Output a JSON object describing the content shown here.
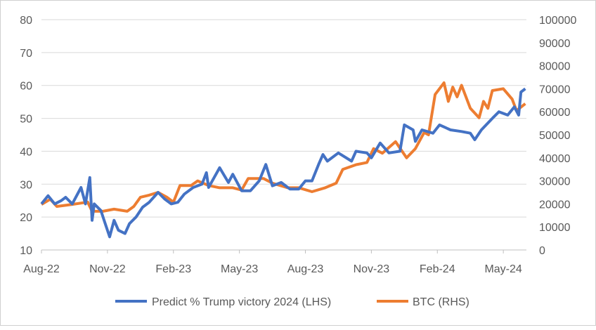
{
  "chart_data": {
    "type": "line",
    "title": "",
    "x_unit": "months since Aug-2022",
    "x_ticks": [
      {
        "m": 0,
        "label": "Aug-22"
      },
      {
        "m": 3,
        "label": "Nov-22"
      },
      {
        "m": 6,
        "label": "Feb-23"
      },
      {
        "m": 9,
        "label": "May-23"
      },
      {
        "m": 12,
        "label": "Aug-23"
      },
      {
        "m": 15,
        "label": "Nov-23"
      },
      {
        "m": 18,
        "label": "Feb-24"
      },
      {
        "m": 21,
        "label": "May-24"
      }
    ],
    "xlim": [
      0,
      22.05
    ],
    "y_left": {
      "ylim": [
        10,
        80
      ],
      "ticks": [
        "10",
        "20",
        "30",
        "40",
        "50",
        "60",
        "70",
        "80"
      ]
    },
    "y_right": {
      "ylim": [
        0,
        100000
      ],
      "ticks": [
        "0",
        "10000",
        "20000",
        "30000",
        "40000",
        "50000",
        "60000",
        "70000",
        "80000",
        "90000",
        "100000"
      ]
    },
    "grid": true,
    "legend_position": "bottom",
    "series": [
      {
        "name": "Predict % Trump victory 2024 (LHS)",
        "axis": "left",
        "color": "#4472C4",
        "points": [
          [
            0,
            24
          ],
          [
            0.3,
            26.5
          ],
          [
            0.6,
            24
          ],
          [
            0.9,
            25
          ],
          [
            1.1,
            26
          ],
          [
            1.4,
            24
          ],
          [
            1.8,
            29
          ],
          [
            2.0,
            24
          ],
          [
            2.2,
            32
          ],
          [
            2.3,
            19
          ],
          [
            2.4,
            24
          ],
          [
            2.7,
            22
          ],
          [
            2.9,
            18
          ],
          [
            3.1,
            14
          ],
          [
            3.3,
            19
          ],
          [
            3.5,
            16
          ],
          [
            3.8,
            15
          ],
          [
            4.0,
            18
          ],
          [
            4.3,
            20
          ],
          [
            4.6,
            23
          ],
          [
            4.9,
            24.5
          ],
          [
            5.3,
            27.5
          ],
          [
            5.6,
            25.5
          ],
          [
            5.9,
            24
          ],
          [
            6.2,
            24.5
          ],
          [
            6.5,
            27
          ],
          [
            6.9,
            29
          ],
          [
            7.3,
            30
          ],
          [
            7.5,
            33.5
          ],
          [
            7.6,
            29
          ],
          [
            8.1,
            35
          ],
          [
            8.5,
            30.5
          ],
          [
            8.7,
            33
          ],
          [
            9.1,
            28
          ],
          [
            9.5,
            28
          ],
          [
            9.9,
            31
          ],
          [
            10.2,
            36
          ],
          [
            10.5,
            29.5
          ],
          [
            10.9,
            30.5
          ],
          [
            11.3,
            28.5
          ],
          [
            11.7,
            28.5
          ],
          [
            12.0,
            31
          ],
          [
            12.3,
            31
          ],
          [
            12.6,
            36
          ],
          [
            12.8,
            39
          ],
          [
            13.0,
            37
          ],
          [
            13.5,
            39.5
          ],
          [
            14.1,
            37
          ],
          [
            14.3,
            40
          ],
          [
            14.8,
            39.5
          ],
          [
            15.0,
            38
          ],
          [
            15.4,
            42.5
          ],
          [
            15.8,
            39.5
          ],
          [
            16.3,
            40
          ],
          [
            16.5,
            48
          ],
          [
            16.9,
            46.5
          ],
          [
            17.0,
            43
          ],
          [
            17.3,
            46.5
          ],
          [
            17.8,
            45.5
          ],
          [
            18.1,
            48
          ],
          [
            18.6,
            46.5
          ],
          [
            19.1,
            46
          ],
          [
            19.5,
            45.5
          ],
          [
            19.7,
            43.5
          ],
          [
            20.0,
            46.5
          ],
          [
            20.5,
            50
          ],
          [
            20.8,
            52
          ],
          [
            21.2,
            51
          ],
          [
            21.5,
            53.5
          ],
          [
            21.7,
            51
          ],
          [
            21.8,
            58
          ],
          [
            22.0,
            59
          ]
        ]
      },
      {
        "name": "BTC (RHS)",
        "axis": "right",
        "color": "#ED7D31",
        "points": [
          [
            0,
            19800
          ],
          [
            0.4,
            22000
          ],
          [
            0.7,
            18900
          ],
          [
            1.4,
            19800
          ],
          [
            2.1,
            20800
          ],
          [
            2.3,
            16800
          ],
          [
            2.8,
            16800
          ],
          [
            3.3,
            17700
          ],
          [
            3.9,
            16800
          ],
          [
            4.2,
            18900
          ],
          [
            4.5,
            22900
          ],
          [
            4.9,
            23800
          ],
          [
            5.3,
            25000
          ],
          [
            5.7,
            22900
          ],
          [
            6.0,
            20800
          ],
          [
            6.3,
            28000
          ],
          [
            6.8,
            28000
          ],
          [
            7.1,
            30000
          ],
          [
            7.6,
            28000
          ],
          [
            8.1,
            27000
          ],
          [
            8.7,
            27000
          ],
          [
            9.1,
            26000
          ],
          [
            9.4,
            31000
          ],
          [
            10.1,
            31000
          ],
          [
            10.5,
            29000
          ],
          [
            11.2,
            27000
          ],
          [
            11.7,
            27000
          ],
          [
            12.3,
            25300
          ],
          [
            12.9,
            27000
          ],
          [
            13.4,
            29000
          ],
          [
            13.7,
            35000
          ],
          [
            14.3,
            37000
          ],
          [
            14.8,
            38000
          ],
          [
            15.1,
            44000
          ],
          [
            15.5,
            42000
          ],
          [
            16.1,
            47000
          ],
          [
            16.6,
            40000
          ],
          [
            17.0,
            44000
          ],
          [
            17.4,
            51000
          ],
          [
            17.6,
            50000
          ],
          [
            17.9,
            67500
          ],
          [
            18.3,
            72600
          ],
          [
            18.5,
            64500
          ],
          [
            18.7,
            70700
          ],
          [
            18.9,
            66500
          ],
          [
            19.1,
            71500
          ],
          [
            19.5,
            61500
          ],
          [
            19.9,
            57400
          ],
          [
            20.1,
            64500
          ],
          [
            20.3,
            61500
          ],
          [
            20.5,
            69200
          ],
          [
            21.0,
            70000
          ],
          [
            21.4,
            65500
          ],
          [
            21.6,
            60500
          ],
          [
            22.0,
            63500
          ]
        ]
      }
    ]
  }
}
